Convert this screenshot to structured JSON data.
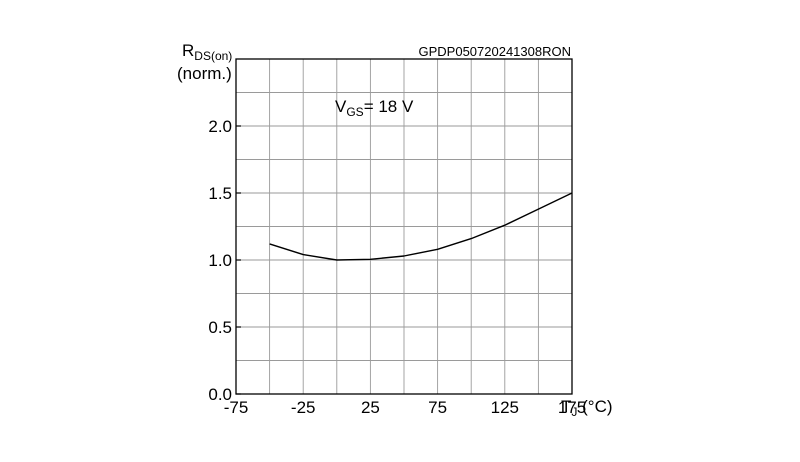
{
  "chart_data": {
    "type": "line",
    "doc_code": "GPDP050720241308RON",
    "ylabel_main": "R",
    "ylabel_sub": "DS(on)",
    "ylabel_unit": "(norm.)",
    "xlabel_main": "T",
    "xlabel_sub": "J",
    "xlabel_unit": " (°C)",
    "annotation_main": "V",
    "annotation_sub": "GS",
    "annotation_value": "= 18 V",
    "xlim": [
      -75,
      175
    ],
    "ylim": [
      0.0,
      2.5
    ],
    "x_ticks": [
      -75,
      -25,
      25,
      75,
      125,
      175
    ],
    "x_tick_labels": [
      "-75",
      "-25",
      "25",
      "75",
      "125",
      "175"
    ],
    "y_ticks": [
      0.0,
      0.5,
      1.0,
      1.5,
      2.0
    ],
    "y_tick_labels": [
      "0.0",
      "0.5",
      "1.0",
      "1.5",
      "2.0"
    ],
    "grid": true,
    "series": [
      {
        "x": [
          -50,
          -25,
          0,
          25,
          50,
          75,
          100,
          125,
          150,
          175
        ],
        "y": [
          1.12,
          1.04,
          1.0,
          1.005,
          1.03,
          1.08,
          1.16,
          1.26,
          1.38,
          1.5
        ],
        "color": "#000000"
      }
    ]
  }
}
